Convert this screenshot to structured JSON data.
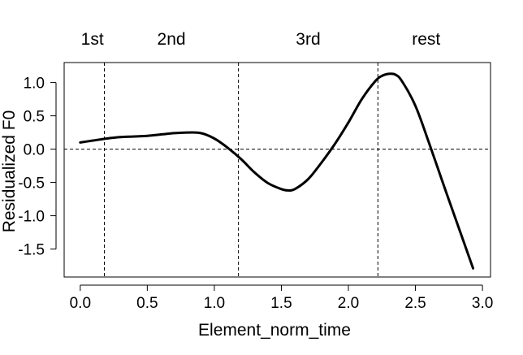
{
  "chart_data": {
    "type": "line",
    "title": "",
    "xlabel": "Element_norm_time",
    "ylabel": "Residualized F0",
    "xlim": [
      -0.12,
      3.06
    ],
    "ylim": [
      -1.92,
      1.3
    ],
    "x_ticks": [
      0.0,
      0.5,
      1.0,
      1.5,
      2.0,
      2.5,
      3.0
    ],
    "x_tick_labels": [
      "0.0",
      "0.5",
      "1.0",
      "1.5",
      "2.0",
      "2.5",
      "3.0"
    ],
    "y_ticks": [
      1.0,
      0.5,
      0.0,
      -0.5,
      -1.0,
      -1.5
    ],
    "y_tick_labels": [
      "1.0",
      "0.5",
      "0.0",
      "-0.5",
      "-1.0",
      "-1.5"
    ],
    "reference_lines": {
      "vertical": [
        0.18,
        1.18,
        2.22
      ],
      "horizontal": [
        0.0
      ],
      "style": "dashed"
    },
    "segments": [
      {
        "label": "1st",
        "x": 0.09
      },
      {
        "label": "2nd",
        "x": 0.68
      },
      {
        "label": "3rd",
        "x": 1.7
      },
      {
        "label": "rest",
        "x": 2.58
      }
    ],
    "series": [
      {
        "color": "#000000",
        "x": [
          0.0,
          0.1,
          0.2,
          0.3,
          0.4,
          0.5,
          0.6,
          0.7,
          0.8,
          0.9,
          1.0,
          1.1,
          1.2,
          1.3,
          1.4,
          1.5,
          1.55,
          1.6,
          1.7,
          1.8,
          1.9,
          2.0,
          2.1,
          2.2,
          2.25,
          2.3,
          2.35,
          2.4,
          2.5,
          2.6,
          2.7,
          2.8,
          2.93
        ],
        "y": [
          0.1,
          0.13,
          0.16,
          0.18,
          0.19,
          0.2,
          0.22,
          0.24,
          0.25,
          0.24,
          0.16,
          0.02,
          -0.15,
          -0.35,
          -0.51,
          -0.6,
          -0.62,
          -0.6,
          -0.45,
          -0.2,
          0.08,
          0.4,
          0.75,
          1.02,
          1.1,
          1.13,
          1.12,
          1.02,
          0.65,
          0.1,
          -0.48,
          -1.05,
          -1.79
        ]
      }
    ]
  }
}
